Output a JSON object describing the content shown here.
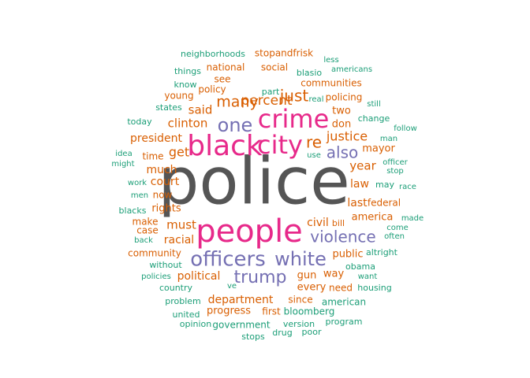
{
  "colors": {
    "gray": "#555555",
    "magenta": "#e7298a",
    "purple": "#7570b3",
    "orange": "#d95f02",
    "teal": "#1b9e77"
  },
  "words": [
    {
      "text": "police",
      "color": "gray"
    },
    {
      "text": "people",
      "color": "magenta"
    },
    {
      "text": "black",
      "color": "magenta"
    },
    {
      "text": "crime",
      "color": "magenta"
    },
    {
      "text": "city",
      "color": "magenta"
    },
    {
      "text": "officers",
      "color": "purple"
    },
    {
      "text": "white",
      "color": "purple"
    },
    {
      "text": "trump",
      "color": "purple"
    },
    {
      "text": "violence",
      "color": "purple"
    },
    {
      "text": "one",
      "color": "purple"
    },
    {
      "text": "also",
      "color": "purple"
    },
    {
      "text": "percent",
      "color": "orange"
    },
    {
      "text": "many",
      "color": "orange"
    },
    {
      "text": "just",
      "color": "orange"
    },
    {
      "text": "re",
      "color": "orange"
    },
    {
      "text": "justice",
      "color": "orange"
    },
    {
      "text": "clinton",
      "color": "orange"
    },
    {
      "text": "said",
      "color": "orange"
    },
    {
      "text": "get",
      "color": "orange"
    },
    {
      "text": "year",
      "color": "orange"
    },
    {
      "text": "president",
      "color": "orange"
    },
    {
      "text": "must",
      "color": "orange"
    },
    {
      "text": "last",
      "color": "orange"
    },
    {
      "text": "political",
      "color": "orange"
    },
    {
      "text": "department",
      "color": "orange"
    },
    {
      "text": "racial",
      "color": "orange"
    },
    {
      "text": "civil",
      "color": "orange"
    },
    {
      "text": "america",
      "color": "orange"
    },
    {
      "text": "law",
      "color": "orange"
    },
    {
      "text": "much",
      "color": "orange"
    },
    {
      "text": "court",
      "color": "orange"
    },
    {
      "text": "rights",
      "color": "orange"
    },
    {
      "text": "public",
      "color": "orange"
    },
    {
      "text": "gun",
      "color": "orange"
    },
    {
      "text": "every",
      "color": "orange"
    },
    {
      "text": "way",
      "color": "orange"
    },
    {
      "text": "progress",
      "color": "orange"
    },
    {
      "text": "since",
      "color": "orange"
    },
    {
      "text": "first",
      "color": "orange"
    },
    {
      "text": "two",
      "color": "orange"
    },
    {
      "text": "don",
      "color": "orange"
    },
    {
      "text": "mayor",
      "color": "orange"
    },
    {
      "text": "federal",
      "color": "orange"
    },
    {
      "text": "time",
      "color": "orange"
    },
    {
      "text": "now",
      "color": "orange"
    },
    {
      "text": "make",
      "color": "orange"
    },
    {
      "text": "case",
      "color": "orange"
    },
    {
      "text": "community",
      "color": "orange"
    },
    {
      "text": "national",
      "color": "orange"
    },
    {
      "text": "social",
      "color": "orange"
    },
    {
      "text": "stopandfrisk",
      "color": "orange"
    },
    {
      "text": "see",
      "color": "orange"
    },
    {
      "text": "policy",
      "color": "orange"
    },
    {
      "text": "young",
      "color": "orange"
    },
    {
      "text": "communities",
      "color": "orange"
    },
    {
      "text": "need",
      "color": "orange"
    },
    {
      "text": "policing",
      "color": "orange"
    },
    {
      "text": "bill",
      "color": "orange"
    },
    {
      "text": "neighborhoods",
      "color": "teal"
    },
    {
      "text": "less",
      "color": "teal"
    },
    {
      "text": "americans",
      "color": "teal"
    },
    {
      "text": "things",
      "color": "teal"
    },
    {
      "text": "blasio",
      "color": "teal"
    },
    {
      "text": "know",
      "color": "teal"
    },
    {
      "text": "part",
      "color": "teal"
    },
    {
      "text": "real",
      "color": "teal"
    },
    {
      "text": "states",
      "color": "teal"
    },
    {
      "text": "still",
      "color": "teal"
    },
    {
      "text": "today",
      "color": "teal"
    },
    {
      "text": "change",
      "color": "teal"
    },
    {
      "text": "follow",
      "color": "teal"
    },
    {
      "text": "man",
      "color": "teal"
    },
    {
      "text": "idea",
      "color": "teal"
    },
    {
      "text": "use",
      "color": "teal"
    },
    {
      "text": "officer",
      "color": "teal"
    },
    {
      "text": "might",
      "color": "teal"
    },
    {
      "text": "stop",
      "color": "teal"
    },
    {
      "text": "work",
      "color": "teal"
    },
    {
      "text": "may",
      "color": "teal"
    },
    {
      "text": "race",
      "color": "teal"
    },
    {
      "text": "men",
      "color": "teal"
    },
    {
      "text": "blacks",
      "color": "teal"
    },
    {
      "text": "made",
      "color": "teal"
    },
    {
      "text": "come",
      "color": "teal"
    },
    {
      "text": "back",
      "color": "teal"
    },
    {
      "text": "often",
      "color": "teal"
    },
    {
      "text": "altright",
      "color": "teal"
    },
    {
      "text": "without",
      "color": "teal"
    },
    {
      "text": "obama",
      "color": "teal"
    },
    {
      "text": "policies",
      "color": "teal"
    },
    {
      "text": "want",
      "color": "teal"
    },
    {
      "text": "country",
      "color": "teal"
    },
    {
      "text": "ve",
      "color": "teal"
    },
    {
      "text": "housing",
      "color": "teal"
    },
    {
      "text": "problem",
      "color": "teal"
    },
    {
      "text": "american",
      "color": "teal"
    },
    {
      "text": "bloomberg",
      "color": "teal"
    },
    {
      "text": "united",
      "color": "teal"
    },
    {
      "text": "opinion",
      "color": "teal"
    },
    {
      "text": "government",
      "color": "teal"
    },
    {
      "text": "version",
      "color": "teal"
    },
    {
      "text": "program",
      "color": "teal"
    },
    {
      "text": "stops",
      "color": "teal"
    },
    {
      "text": "drug",
      "color": "teal"
    },
    {
      "text": "poor",
      "color": "teal"
    }
  ]
}
